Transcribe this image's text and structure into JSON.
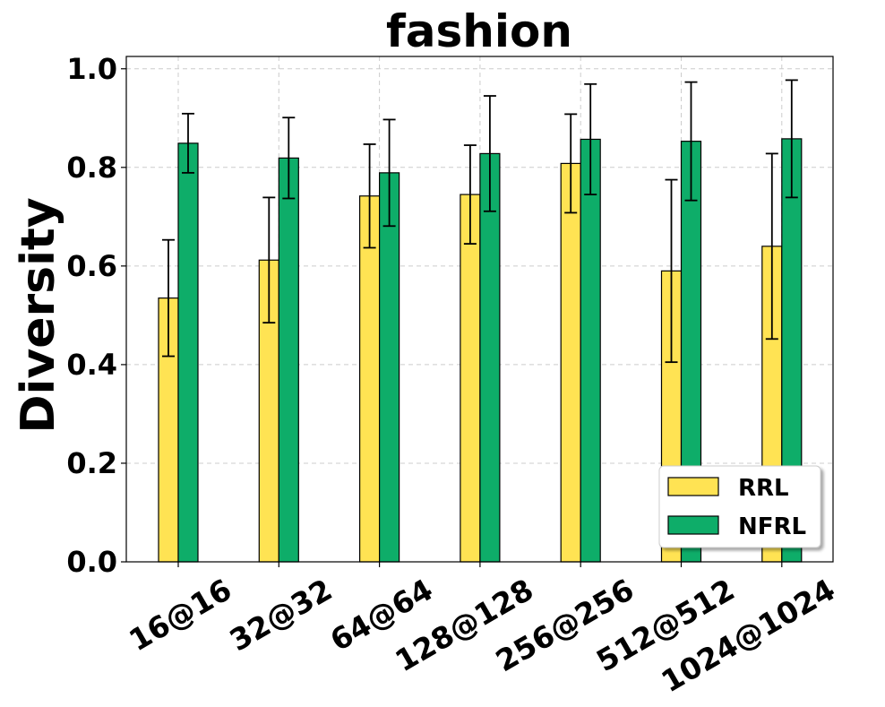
{
  "chart_data": {
    "type": "bar",
    "title": "fashion",
    "xlabel": "",
    "ylabel": "Diversity",
    "ylim": [
      0,
      1.025
    ],
    "yticks": [
      "0.0",
      "0.2",
      "0.4",
      "0.6",
      "0.8",
      "1.0"
    ],
    "ytick_values": [
      0,
      0.2,
      0.4,
      0.6,
      0.8,
      1.0
    ],
    "categories": [
      "16@16",
      "32@32",
      "64@64",
      "128@128",
      "256@256",
      "512@512",
      "1024@1024"
    ],
    "grid": true,
    "legend_position": "lower right",
    "series": [
      {
        "name": "RRL",
        "color": "#FFE353",
        "values": [
          0.535,
          0.612,
          0.742,
          0.745,
          0.808,
          0.59,
          0.64
        ],
        "errors": [
          0.118,
          0.127,
          0.105,
          0.1,
          0.1,
          0.185,
          0.188
        ]
      },
      {
        "name": "NFRL",
        "color": "#0EAD69",
        "values": [
          0.849,
          0.819,
          0.789,
          0.828,
          0.857,
          0.853,
          0.858
        ],
        "errors": [
          0.06,
          0.082,
          0.108,
          0.117,
          0.112,
          0.12,
          0.119
        ]
      }
    ]
  }
}
